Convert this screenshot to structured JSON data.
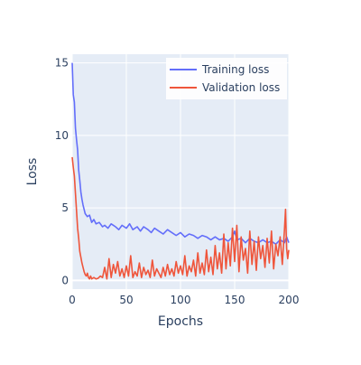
{
  "chart_data": {
    "type": "line",
    "xlabel": "Epochs",
    "ylabel": "Loss",
    "xlim": [
      0,
      200
    ],
    "ylim": [
      -0.6,
      15.6
    ],
    "x_ticks": [
      0,
      50,
      100,
      150,
      200
    ],
    "y_ticks": [
      0,
      5,
      10,
      15
    ],
    "grid": true,
    "legend_position": "top-right",
    "series": [
      {
        "name": "Training loss",
        "color": "#636efa",
        "points": [
          [
            0,
            15
          ],
          [
            1,
            12.8
          ],
          [
            2,
            12.3
          ],
          [
            3,
            10.5
          ],
          [
            4,
            9.7
          ],
          [
            5,
            9.0
          ],
          [
            6,
            7.6
          ],
          [
            7,
            6.9
          ],
          [
            8,
            6.1
          ],
          [
            9,
            5.6
          ],
          [
            10,
            5.2
          ],
          [
            12,
            4.6
          ],
          [
            14,
            4.4
          ],
          [
            16,
            4.5
          ],
          [
            18,
            4.0
          ],
          [
            20,
            4.2
          ],
          [
            22,
            3.9
          ],
          [
            25,
            4.0
          ],
          [
            28,
            3.7
          ],
          [
            30,
            3.8
          ],
          [
            33,
            3.6
          ],
          [
            36,
            3.9
          ],
          [
            40,
            3.7
          ],
          [
            43,
            3.5
          ],
          [
            46,
            3.8
          ],
          [
            50,
            3.6
          ],
          [
            53,
            3.9
          ],
          [
            56,
            3.5
          ],
          [
            60,
            3.7
          ],
          [
            63,
            3.4
          ],
          [
            66,
            3.7
          ],
          [
            70,
            3.5
          ],
          [
            73,
            3.3
          ],
          [
            76,
            3.6
          ],
          [
            80,
            3.4
          ],
          [
            84,
            3.2
          ],
          [
            88,
            3.5
          ],
          [
            92,
            3.3
          ],
          [
            96,
            3.1
          ],
          [
            100,
            3.3
          ],
          [
            104,
            3.0
          ],
          [
            108,
            3.2
          ],
          [
            112,
            3.1
          ],
          [
            116,
            2.9
          ],
          [
            120,
            3.1
          ],
          [
            124,
            3.0
          ],
          [
            128,
            2.8
          ],
          [
            132,
            3.0
          ],
          [
            136,
            2.8
          ],
          [
            140,
            2.9
          ],
          [
            144,
            2.7
          ],
          [
            148,
            3.0
          ],
          [
            150,
            3.4
          ],
          [
            152,
            2.8
          ],
          [
            156,
            2.9
          ],
          [
            160,
            2.6
          ],
          [
            164,
            2.9
          ],
          [
            168,
            2.7
          ],
          [
            172,
            2.6
          ],
          [
            176,
            2.8
          ],
          [
            180,
            2.6
          ],
          [
            184,
            2.7
          ],
          [
            188,
            2.5
          ],
          [
            192,
            2.8
          ],
          [
            196,
            2.6
          ],
          [
            198,
            3.0
          ],
          [
            200,
            2.6
          ]
        ]
      },
      {
        "name": "Validation loss",
        "color": "#ef553b",
        "points": [
          [
            0,
            8.5
          ],
          [
            1,
            7.8
          ],
          [
            2,
            7.2
          ],
          [
            3,
            6.0
          ],
          [
            4,
            4.8
          ],
          [
            5,
            3.6
          ],
          [
            6,
            2.9
          ],
          [
            7,
            2.0
          ],
          [
            8,
            1.6
          ],
          [
            9,
            1.2
          ],
          [
            10,
            0.9
          ],
          [
            11,
            0.6
          ],
          [
            12,
            0.4
          ],
          [
            13,
            0.3
          ],
          [
            14,
            0.5
          ],
          [
            15,
            0.2
          ],
          [
            16,
            0.1
          ],
          [
            17,
            0.3
          ],
          [
            18,
            0.1
          ],
          [
            20,
            0.2
          ],
          [
            22,
            0.1
          ],
          [
            24,
            0.15
          ],
          [
            26,
            0.3
          ],
          [
            28,
            0.2
          ],
          [
            30,
            0.9
          ],
          [
            32,
            0.1
          ],
          [
            34,
            1.5
          ],
          [
            36,
            0.2
          ],
          [
            38,
            1.1
          ],
          [
            40,
            0.5
          ],
          [
            42,
            1.3
          ],
          [
            44,
            0.3
          ],
          [
            46,
            0.8
          ],
          [
            48,
            0.2
          ],
          [
            50,
            1.0
          ],
          [
            52,
            0.3
          ],
          [
            54,
            1.7
          ],
          [
            56,
            0.2
          ],
          [
            58,
            0.6
          ],
          [
            60,
            0.3
          ],
          [
            62,
            1.2
          ],
          [
            64,
            0.2
          ],
          [
            66,
            0.9
          ],
          [
            68,
            0.4
          ],
          [
            70,
            0.7
          ],
          [
            72,
            0.2
          ],
          [
            74,
            1.4
          ],
          [
            76,
            0.3
          ],
          [
            78,
            0.8
          ],
          [
            80,
            0.5
          ],
          [
            82,
            0.2
          ],
          [
            84,
            0.9
          ],
          [
            86,
            0.3
          ],
          [
            88,
            1.1
          ],
          [
            90,
            0.4
          ],
          [
            92,
            0.8
          ],
          [
            94,
            0.3
          ],
          [
            96,
            1.3
          ],
          [
            98,
            0.5
          ],
          [
            100,
            1.0
          ],
          [
            102,
            0.4
          ],
          [
            104,
            1.7
          ],
          [
            106,
            0.3
          ],
          [
            108,
            1.0
          ],
          [
            110,
            0.6
          ],
          [
            112,
            1.4
          ],
          [
            114,
            0.3
          ],
          [
            116,
            1.9
          ],
          [
            118,
            0.5
          ],
          [
            120,
            1.2
          ],
          [
            122,
            0.4
          ],
          [
            124,
            2.1
          ],
          [
            126,
            0.6
          ],
          [
            128,
            1.6
          ],
          [
            130,
            0.4
          ],
          [
            132,
            2.4
          ],
          [
            134,
            0.8
          ],
          [
            136,
            1.9
          ],
          [
            138,
            0.5
          ],
          [
            140,
            3.2
          ],
          [
            142,
            0.8
          ],
          [
            144,
            2.6
          ],
          [
            146,
            1.0
          ],
          [
            148,
            3.6
          ],
          [
            150,
            1.3
          ],
          [
            152,
            3.8
          ],
          [
            154,
            0.6
          ],
          [
            156,
            3.0
          ],
          [
            158,
            1.4
          ],
          [
            160,
            2.2
          ],
          [
            162,
            0.5
          ],
          [
            164,
            3.4
          ],
          [
            166,
            1.1
          ],
          [
            168,
            2.7
          ],
          [
            170,
            0.7
          ],
          [
            172,
            3.0
          ],
          [
            174,
            1.5
          ],
          [
            176,
            2.4
          ],
          [
            178,
            0.9
          ],
          [
            180,
            2.9
          ],
          [
            182,
            1.2
          ],
          [
            184,
            3.4
          ],
          [
            186,
            0.8
          ],
          [
            188,
            2.5
          ],
          [
            190,
            1.7
          ],
          [
            192,
            3.0
          ],
          [
            194,
            1.1
          ],
          [
            196,
            3.5
          ],
          [
            197,
            4.9
          ],
          [
            198,
            2.2
          ],
          [
            199,
            1.5
          ],
          [
            200,
            2.1
          ]
        ]
      }
    ]
  }
}
